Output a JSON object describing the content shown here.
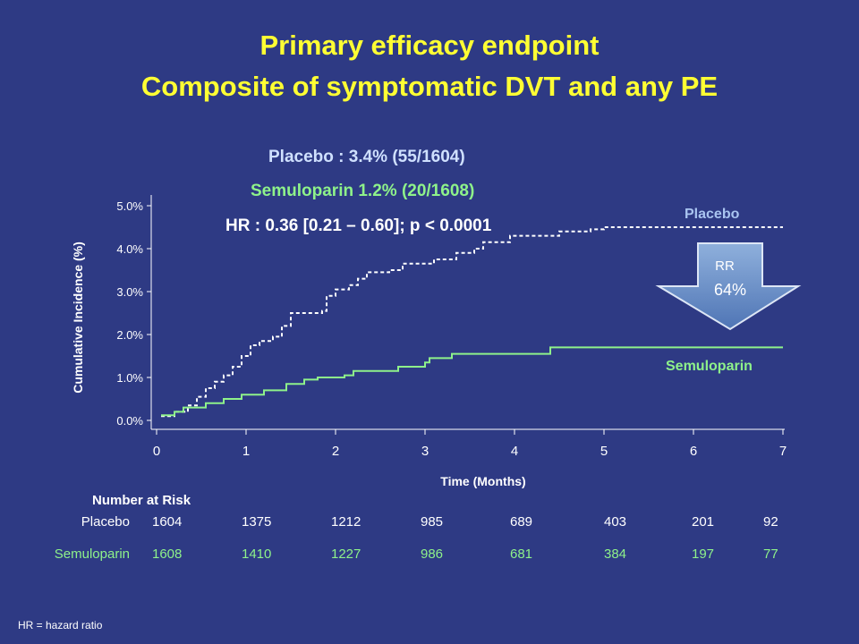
{
  "slide": {
    "title_line1": "Primary efficacy endpoint",
    "title_line2": "Composite of symptomatic DVT and any PE",
    "footnote": "HR = hazard ratio"
  },
  "chart_data": {
    "type": "line",
    "xlabel": "Time (Months)",
    "ylabel": "Cumulative Incidence (%)",
    "xlim": [
      0,
      7
    ],
    "ylim": [
      0,
      5
    ],
    "x_ticks": [
      "0",
      "1",
      "2",
      "3",
      "4",
      "5",
      "6",
      "7"
    ],
    "y_ticks": [
      "0.0%",
      "1.0%",
      "2.0%",
      "3.0%",
      "4.0%",
      "5.0%"
    ],
    "annotations": {
      "placebo_summary": "Placebo : 3.4% (55/1604)",
      "semuloparin_summary": "Semuloparin 1.2% (20/1608)",
      "hr_text": "HR : 0.36 [0.21 – 0.60]; p < 0.0001",
      "placebo_line_label": "Placebo",
      "semuloparin_line_label": "Semuloparin",
      "rr_label": "RR",
      "rr_value": "64%"
    },
    "series": [
      {
        "name": "Placebo",
        "color": "#ffffff",
        "style": "dashed-step",
        "points": [
          [
            0.05,
            0.1
          ],
          [
            0.2,
            0.2
          ],
          [
            0.35,
            0.35
          ],
          [
            0.45,
            0.55
          ],
          [
            0.55,
            0.75
          ],
          [
            0.65,
            0.9
          ],
          [
            0.75,
            1.05
          ],
          [
            0.85,
            1.25
          ],
          [
            0.95,
            1.5
          ],
          [
            1.05,
            1.75
          ],
          [
            1.15,
            1.85
          ],
          [
            1.3,
            1.95
          ],
          [
            1.4,
            2.2
          ],
          [
            1.5,
            2.5
          ],
          [
            1.85,
            2.55
          ],
          [
            1.9,
            2.9
          ],
          [
            2.0,
            3.05
          ],
          [
            2.15,
            3.15
          ],
          [
            2.25,
            3.3
          ],
          [
            2.35,
            3.45
          ],
          [
            2.6,
            3.5
          ],
          [
            2.75,
            3.65
          ],
          [
            3.1,
            3.75
          ],
          [
            3.35,
            3.9
          ],
          [
            3.55,
            4.0
          ],
          [
            3.65,
            4.15
          ],
          [
            3.95,
            4.3
          ],
          [
            4.5,
            4.4
          ],
          [
            4.85,
            4.45
          ],
          [
            5.0,
            4.5
          ],
          [
            7.0,
            4.5
          ]
        ]
      },
      {
        "name": "Semuloparin",
        "color": "#8ef28a",
        "style": "solid-step",
        "points": [
          [
            0.05,
            0.12
          ],
          [
            0.2,
            0.2
          ],
          [
            0.3,
            0.3
          ],
          [
            0.55,
            0.4
          ],
          [
            0.75,
            0.5
          ],
          [
            0.95,
            0.6
          ],
          [
            1.2,
            0.7
          ],
          [
            1.45,
            0.85
          ],
          [
            1.65,
            0.95
          ],
          [
            1.8,
            1.0
          ],
          [
            2.1,
            1.05
          ],
          [
            2.2,
            1.15
          ],
          [
            2.7,
            1.25
          ],
          [
            3.0,
            1.35
          ],
          [
            3.05,
            1.45
          ],
          [
            3.3,
            1.55
          ],
          [
            4.4,
            1.7
          ],
          [
            7.0,
            1.7
          ]
        ]
      }
    ]
  },
  "number_at_risk": {
    "header": "Number at Risk",
    "rows": [
      {
        "label": "Placebo",
        "values": [
          "1604",
          "1375",
          "1212",
          "985",
          "689",
          "403",
          "201",
          "92"
        ]
      },
      {
        "label": "Semuloparin",
        "values": [
          "1608",
          "1410",
          "1227",
          "986",
          "681",
          "384",
          "197",
          "77"
        ]
      }
    ]
  }
}
